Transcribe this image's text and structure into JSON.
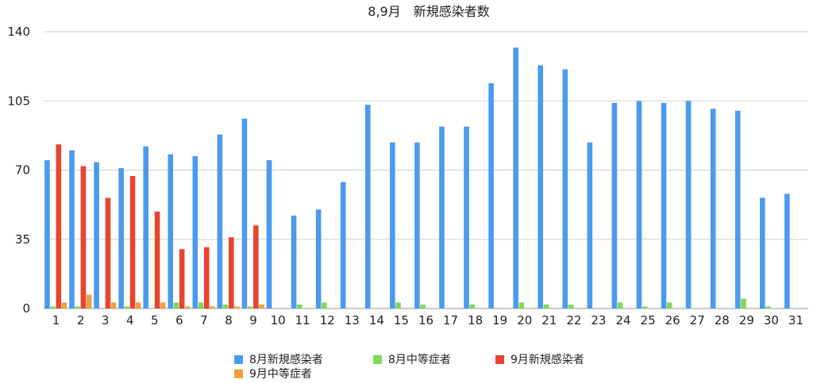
{
  "chart_data": {
    "type": "bar",
    "title": "8,9月　新規感染者数",
    "xlabel": "",
    "ylabel": "",
    "ylim": [
      0,
      140
    ],
    "yticks": [
      0,
      35,
      70,
      105,
      140
    ],
    "grid": true,
    "legend_position": "bottom",
    "categories": [
      "1",
      "2",
      "3",
      "4",
      "5",
      "6",
      "7",
      "8",
      "9",
      "10",
      "11",
      "12",
      "13",
      "14",
      "15",
      "16",
      "17",
      "18",
      "19",
      "20",
      "21",
      "22",
      "23",
      "24",
      "25",
      "26",
      "27",
      "28",
      "29",
      "30",
      "31"
    ],
    "series": [
      {
        "name": "8月新規感染者",
        "color": "#4a9af0",
        "values": [
          75,
          80,
          74,
          71,
          82,
          78,
          77,
          88,
          96,
          75,
          47,
          50,
          64,
          103,
          84,
          84,
          92,
          92,
          114,
          132,
          123,
          121,
          84,
          104,
          105,
          104,
          105,
          101,
          100,
          56,
          58
        ]
      },
      {
        "name": "8月中等症者",
        "color": "#7ed957",
        "values": [
          1,
          1,
          0,
          1,
          0,
          3,
          3,
          2,
          1,
          0,
          2,
          3,
          0,
          0,
          3,
          2,
          0,
          2,
          0,
          3,
          2,
          2,
          0,
          3,
          1,
          3,
          0,
          0,
          5,
          1,
          0
        ]
      },
      {
        "name": "9月新規感染者",
        "color": "#e8442e",
        "values": [
          83,
          72,
          56,
          67,
          49,
          30,
          31,
          36,
          42,
          null,
          null,
          null,
          null,
          null,
          null,
          null,
          null,
          null,
          null,
          null,
          null,
          null,
          null,
          null,
          null,
          null,
          null,
          null,
          null,
          null,
          null
        ]
      },
      {
        "name": "9月中等症者",
        "color": "#f2a03d",
        "values": [
          3,
          7,
          3,
          3,
          3,
          1,
          1,
          1,
          2,
          null,
          null,
          null,
          null,
          null,
          null,
          null,
          null,
          null,
          null,
          null,
          null,
          null,
          null,
          null,
          null,
          null,
          null,
          null,
          null,
          null,
          null
        ]
      }
    ]
  }
}
